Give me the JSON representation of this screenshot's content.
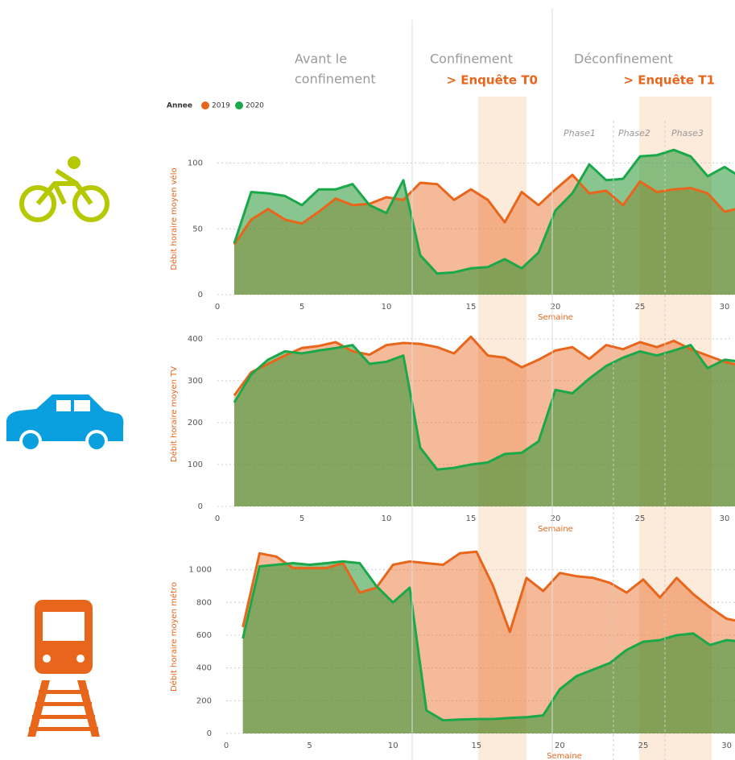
{
  "header": {
    "avant": [
      "Avant le",
      "confinement"
    ],
    "confinement": "Confinement",
    "enquete_t0": "> Enquête T0",
    "deconfinement": "Déconfinement",
    "enquete_t1": "> Enquête T1"
  },
  "legend_title": "Annee",
  "phases": [
    "Phase1",
    "Phase2",
    "Phase3"
  ],
  "chart_data": [
    {
      "type": "area",
      "ylabel": "Débit horaire moyen vélo",
      "xlabel": "Semaine",
      "x": [
        1,
        2,
        3,
        4,
        5,
        6,
        7,
        8,
        9,
        10,
        11,
        12,
        13,
        14,
        15,
        16,
        17,
        18,
        19,
        20,
        21,
        22,
        23,
        24,
        25,
        26,
        27,
        28,
        29,
        30,
        31
      ],
      "xlim": [
        0,
        30.5
      ],
      "xticks": [
        0,
        5,
        10,
        15,
        20,
        25,
        30
      ],
      "ylim": [
        0,
        115
      ],
      "yticks": [
        0,
        50,
        100
      ],
      "grid": true,
      "series": [
        {
          "name": "2019",
          "color": "#e8661c",
          "values": [
            38,
            57,
            65,
            57,
            54,
            63,
            73,
            68,
            69,
            74,
            72,
            85,
            84,
            72,
            80,
            72,
            55,
            78,
            68,
            80,
            91,
            77,
            79,
            68,
            86,
            78,
            80,
            81,
            77,
            63,
            66
          ]
        },
        {
          "name": "2020",
          "color": "#1aa84a",
          "values": [
            39,
            78,
            77,
            75,
            68,
            80,
            80,
            84,
            68,
            62,
            87,
            30,
            16,
            17,
            20,
            21,
            27,
            20,
            32,
            64,
            77,
            99,
            87,
            88,
            105,
            106,
            110,
            105,
            90,
            97,
            89
          ]
        }
      ]
    },
    {
      "type": "area",
      "ylabel": "Débit horaire moyen TV",
      "xlabel": "Semaine",
      "x": [
        1,
        2,
        3,
        4,
        5,
        6,
        7,
        8,
        9,
        10,
        11,
        12,
        13,
        14,
        15,
        16,
        17,
        18,
        19,
        20,
        21,
        22,
        23,
        24,
        25,
        26,
        27,
        28,
        29,
        30,
        31
      ],
      "xlim": [
        0,
        30.5
      ],
      "xticks": [
        0,
        5,
        10,
        15,
        20,
        25,
        30
      ],
      "ylim": [
        0,
        440
      ],
      "yticks": [
        0,
        100,
        200,
        300,
        400
      ],
      "grid": true,
      "series": [
        {
          "name": "2019",
          "color": "#e8661c",
          "values": [
            265,
            320,
            340,
            360,
            378,
            383,
            392,
            370,
            362,
            385,
            390,
            388,
            380,
            365,
            405,
            360,
            355,
            332,
            350,
            372,
            380,
            352,
            385,
            375,
            392,
            380,
            395,
            375,
            360,
            345,
            335
          ]
        },
        {
          "name": "2020",
          "color": "#1aa84a",
          "values": [
            248,
            315,
            350,
            370,
            365,
            372,
            378,
            385,
            340,
            345,
            360,
            140,
            88,
            92,
            100,
            105,
            125,
            128,
            155,
            278,
            270,
            305,
            335,
            355,
            370,
            360,
            372,
            385,
            330,
            350,
            345
          ]
        }
      ]
    },
    {
      "type": "area",
      "ylabel": "Débit horaire moyen métro",
      "xlabel": "Semaine",
      "x": [
        1,
        2,
        3,
        4,
        5,
        6,
        7,
        8,
        9,
        10,
        11,
        12,
        13,
        14,
        15,
        16,
        17,
        18,
        19,
        20,
        21,
        22,
        23,
        24,
        25,
        26,
        27,
        28,
        29,
        30,
        31
      ],
      "xlim": [
        0,
        30.5
      ],
      "xticks": [
        0,
        5,
        10,
        15,
        20,
        25,
        30
      ],
      "ylim": [
        0,
        1180
      ],
      "yticks": [
        0,
        200,
        400,
        600,
        800,
        {
          "value": 1000,
          "label": "1 000"
        }
      ],
      "grid": true,
      "series": [
        {
          "name": "2019",
          "color": "#e8661c",
          "values": [
            650,
            1100,
            1080,
            1010,
            1010,
            1010,
            1040,
            860,
            890,
            1030,
            1050,
            1040,
            1030,
            1100,
            1110,
            900,
            620,
            950,
            870,
            980,
            960,
            950,
            920,
            860,
            940,
            830,
            950,
            850,
            770,
            700,
            680
          ]
        },
        {
          "name": "2020",
          "color": "#1aa84a",
          "values": [
            580,
            1020,
            1030,
            1040,
            1030,
            1040,
            1050,
            1040,
            900,
            800,
            890,
            140,
            80,
            85,
            88,
            88,
            95,
            100,
            110,
            270,
            350,
            390,
            430,
            510,
            560,
            570,
            600,
            610,
            540,
            570,
            560
          ]
        }
      ]
    }
  ]
}
